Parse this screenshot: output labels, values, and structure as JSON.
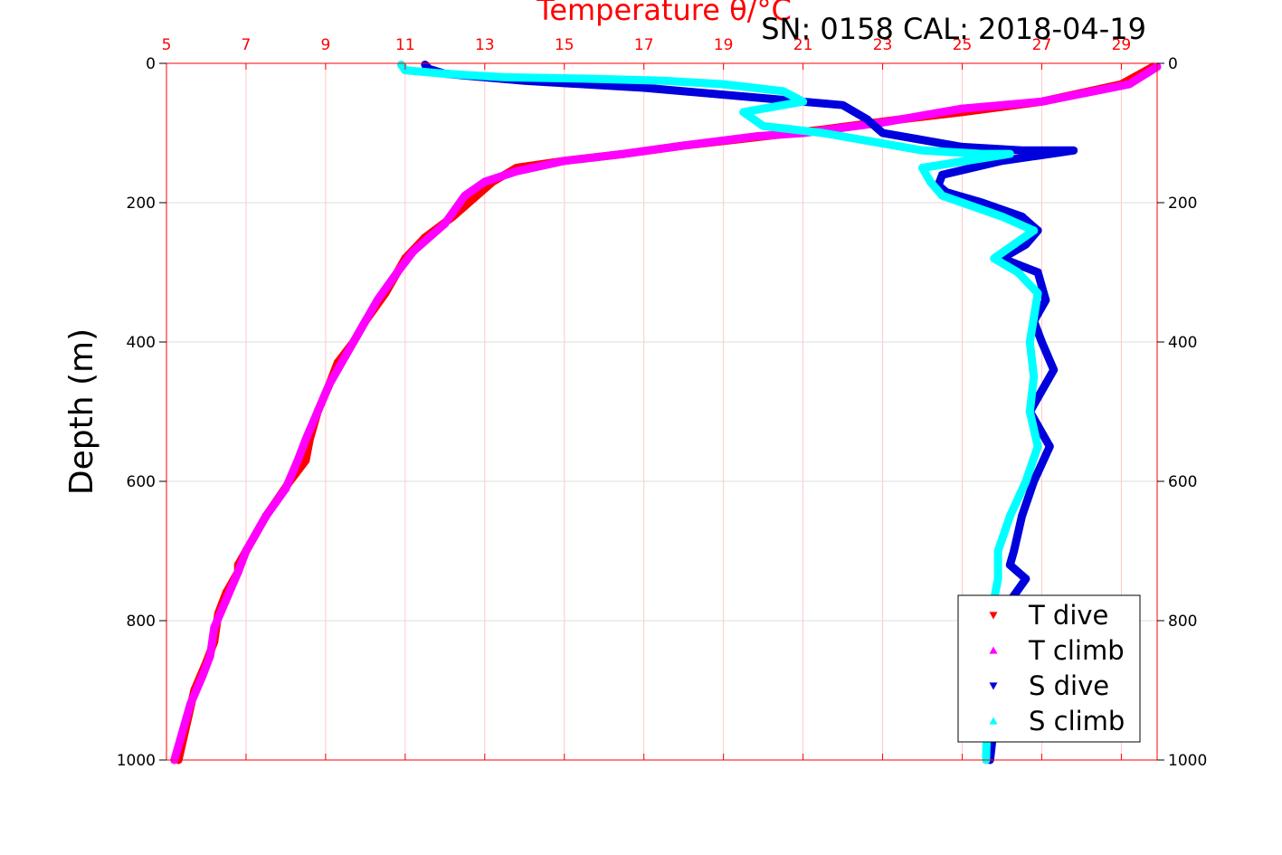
{
  "chart_data": {
    "type": "scatter",
    "title": "Temperature θ/°C",
    "annotation": "SN: 0158  CAL: 2018-04-19",
    "ylabel": "Depth (m)",
    "xlabel": "",
    "xlim": [
      5,
      29.9
    ],
    "ylim": [
      0,
      1000
    ],
    "y_inverted": true,
    "x_axis_position": "top",
    "x_ticks": [
      "5",
      "7",
      "9",
      "11",
      "13",
      "15",
      "17",
      "19",
      "21",
      "23",
      "25",
      "27",
      "29"
    ],
    "y_ticks": [
      "0",
      "200",
      "400",
      "600",
      "800",
      "1000"
    ],
    "grid": true,
    "legend_position": "bottom-right",
    "colors": {
      "t_dive": "#ff0000",
      "t_climb": "#ff00ff",
      "s_dive": "#0000dd",
      "s_climb": "#00ffff",
      "axis": "#ff0000",
      "grid_x": "#ffc8c8",
      "grid_y": "#dcdcdc"
    },
    "series": [
      {
        "name": "T dive",
        "marker": "triangle-down",
        "color": "#ff0000",
        "x": [
          29.8,
          29.0,
          27.0,
          25.0,
          23.5,
          21.5,
          20.0,
          18.0,
          16.5,
          15.0,
          13.8,
          13.2,
          12.8,
          12.2,
          11.5,
          11.0,
          10.5,
          10.0,
          9.7,
          9.3,
          9.1,
          8.8,
          8.6,
          8.5,
          8.1,
          7.5,
          7.0,
          6.8,
          6.8,
          6.5,
          6.3,
          6.2,
          6.0,
          5.7,
          5.5,
          5.3
        ],
        "y": [
          5,
          30,
          55,
          70,
          80,
          95,
          105,
          118,
          130,
          140,
          150,
          170,
          190,
          220,
          250,
          280,
          330,
          370,
          400,
          430,
          460,
          500,
          540,
          570,
          600,
          650,
          700,
          720,
          730,
          760,
          790,
          830,
          860,
          900,
          950,
          1000
        ]
      },
      {
        "name": "T climb",
        "marker": "triangle-up",
        "color": "#ff00ff",
        "x": [
          29.9,
          29.2,
          27.0,
          25.0,
          23.0,
          21.0,
          19.8,
          18.0,
          16.5,
          15.0,
          13.8,
          13.0,
          12.5,
          12.0,
          11.2,
          10.8,
          10.3,
          9.9,
          9.5,
          9.1,
          8.8,
          8.5,
          8.3,
          8.0,
          7.5,
          7.0,
          6.8,
          6.5,
          6.2,
          6.1,
          5.9,
          5.6,
          5.4,
          5.2
        ],
        "y": [
          5,
          30,
          55,
          65,
          85,
          100,
          105,
          118,
          130,
          140,
          155,
          170,
          190,
          230,
          270,
          300,
          340,
          380,
          420,
          460,
          500,
          540,
          570,
          610,
          650,
          700,
          730,
          770,
          810,
          850,
          880,
          920,
          960,
          1000
        ]
      },
      {
        "name": "S dive",
        "marker": "triangle-down",
        "color": "#0000dd",
        "x": [
          11.5,
          11.6,
          12.0,
          14.0,
          17.0,
          20.0,
          22.0,
          22.6,
          23.0,
          25.0,
          26.5,
          27.8,
          26.0,
          24.5,
          24.4,
          24.6,
          25.5,
          26.5,
          26.9,
          26.6,
          26.0,
          26.9,
          27.1,
          26.8,
          27.0,
          27.3,
          26.9,
          26.7,
          27.2,
          26.8,
          26.5,
          26.3,
          26.2,
          26.6,
          26.1,
          25.9,
          25.7
        ],
        "y": [
          2,
          8,
          15,
          25,
          35,
          50,
          60,
          80,
          100,
          120,
          125,
          125,
          140,
          160,
          175,
          185,
          200,
          220,
          240,
          260,
          280,
          300,
          340,
          370,
          400,
          440,
          480,
          500,
          550,
          600,
          650,
          700,
          720,
          740,
          780,
          900,
          1000
        ]
      },
      {
        "name": "S climb",
        "marker": "triangle-up",
        "color": "#00ffff",
        "x": [
          10.9,
          11.0,
          12.0,
          13.5,
          15.5,
          17.5,
          19.0,
          20.5,
          21.0,
          19.5,
          20.0,
          21.5,
          22.5,
          24.0,
          25.5,
          26.2,
          24.0,
          24.2,
          24.5,
          25.0,
          26.0,
          26.8,
          26.3,
          25.8,
          26.4,
          26.9,
          26.7,
          26.8,
          26.7,
          26.9,
          26.6,
          26.2,
          25.9,
          25.9,
          25.7,
          25.6
        ],
        "y": [
          2,
          10,
          15,
          20,
          22,
          25,
          30,
          40,
          55,
          70,
          90,
          100,
          110,
          125,
          130,
          130,
          150,
          170,
          190,
          200,
          220,
          240,
          260,
          280,
          300,
          330,
          400,
          450,
          500,
          550,
          600,
          650,
          700,
          740,
          800,
          1000
        ]
      }
    ]
  }
}
